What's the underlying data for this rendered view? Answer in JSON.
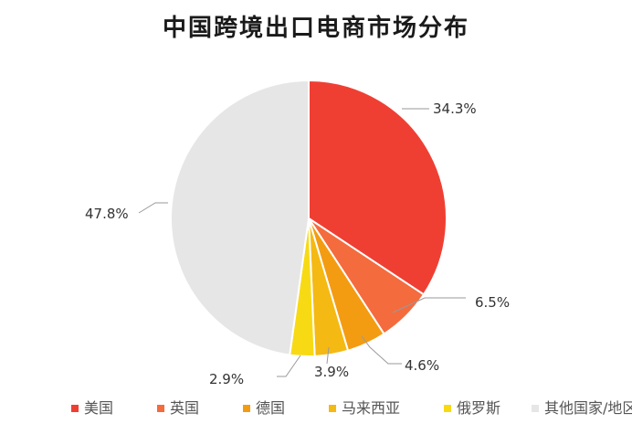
{
  "chart_data": {
    "type": "pie",
    "title": "中国跨境出口电商市场分布",
    "categories": [
      "美国",
      "英国",
      "德国",
      "马来西亚",
      "俄罗斯",
      "其他国家/地区"
    ],
    "values": [
      34.3,
      6.5,
      4.6,
      3.9,
      2.9,
      47.8
    ],
    "value_labels": [
      "34.3%",
      "6.5%",
      "4.6%",
      "3.9%",
      "2.9%",
      "47.8%"
    ],
    "colors": [
      "#EF3F33",
      "#F46B3D",
      "#F39C12",
      "#F5B914",
      "#F7DA14",
      "#E6E6E6"
    ],
    "start_angle_deg": 0,
    "direction": "clockwise",
    "legend_position": "bottom"
  }
}
